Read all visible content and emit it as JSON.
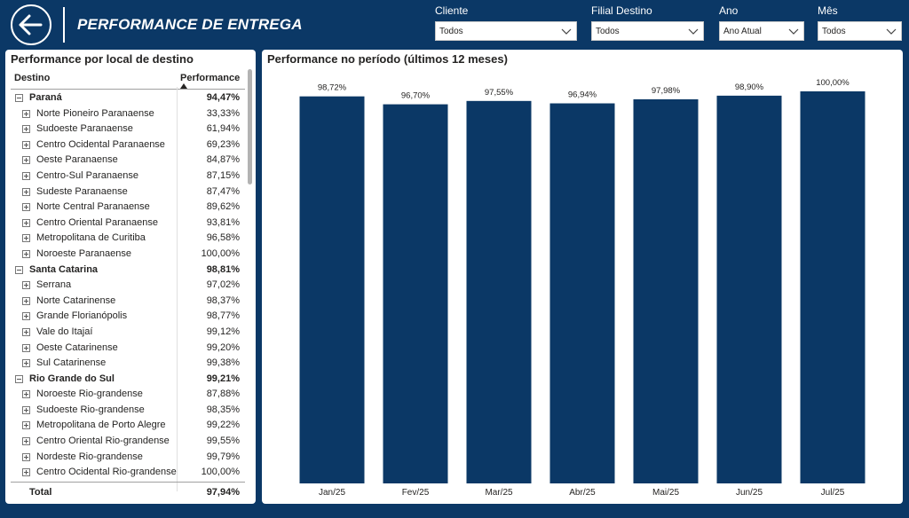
{
  "header": {
    "title": "PERFORMANCE DE ENTREGA",
    "back_icon": "arrow-left-icon"
  },
  "filters": [
    {
      "label": "Cliente",
      "value": "Todos"
    },
    {
      "label": "Filial Destino",
      "value": "Todos"
    },
    {
      "label": "Ano",
      "value": "Ano Atual"
    },
    {
      "label": "Mês",
      "value": "Todos"
    }
  ],
  "table": {
    "title": "Performance por local de destino",
    "col_destino": "Destino",
    "col_performance": "Performance",
    "groups": [
      {
        "name": "Paraná",
        "value": "94,47%",
        "children": [
          {
            "name": "Norte Pioneiro Paranaense",
            "value": "33,33%"
          },
          {
            "name": "Sudoeste Paranaense",
            "value": "61,94%"
          },
          {
            "name": "Centro Ocidental Paranaense",
            "value": "69,23%"
          },
          {
            "name": "Oeste Paranaense",
            "value": "84,87%"
          },
          {
            "name": "Centro-Sul Paranaense",
            "value": "87,15%"
          },
          {
            "name": "Sudeste Paranaense",
            "value": "87,47%"
          },
          {
            "name": "Norte Central Paranaense",
            "value": "89,62%"
          },
          {
            "name": "Centro Oriental Paranaense",
            "value": "93,81%"
          },
          {
            "name": "Metropolitana de Curitiba",
            "value": "96,58%"
          },
          {
            "name": "Noroeste Paranaense",
            "value": "100,00%"
          }
        ]
      },
      {
        "name": "Santa Catarina",
        "value": "98,81%",
        "children": [
          {
            "name": "Serrana",
            "value": "97,02%"
          },
          {
            "name": "Norte Catarinense",
            "value": "98,37%"
          },
          {
            "name": "Grande Florianópolis",
            "value": "98,77%"
          },
          {
            "name": "Vale do Itajaí",
            "value": "99,12%"
          },
          {
            "name": "Oeste Catarinense",
            "value": "99,20%"
          },
          {
            "name": "Sul Catarinense",
            "value": "99,38%"
          }
        ]
      },
      {
        "name": "Rio Grande do Sul",
        "value": "99,21%",
        "children": [
          {
            "name": "Noroeste Rio-grandense",
            "value": "87,88%"
          },
          {
            "name": "Sudoeste Rio-grandense",
            "value": "98,35%"
          },
          {
            "name": "Metropolitana de Porto Alegre",
            "value": "99,22%"
          },
          {
            "name": "Centro Oriental Rio-grandense",
            "value": "99,55%"
          },
          {
            "name": "Nordeste Rio-grandense",
            "value": "99,79%"
          },
          {
            "name": "Centro Ocidental Rio-grandense",
            "value": "100,00%"
          }
        ]
      }
    ],
    "total_label": "Total",
    "total_value": "97,94%"
  },
  "chart_data": {
    "type": "bar",
    "title": "Performance no período (últimos 12 meses)",
    "categories": [
      "Jan/25",
      "Fev/25",
      "Mar/25",
      "Abr/25",
      "Mai/25",
      "Jun/25",
      "Jul/25"
    ],
    "values": [
      98.72,
      96.7,
      97.55,
      96.94,
      97.98,
      98.9,
      100.0
    ],
    "data_labels": [
      "98,72%",
      "96,70%",
      "97,55%",
      "96,94%",
      "97,98%",
      "98,90%",
      "100,00%"
    ],
    "xlabel": "",
    "ylabel": "",
    "ylim": [
      0,
      100
    ],
    "bar_color": "#0b3866"
  },
  "colors": {
    "background": "#0b3866",
    "panel": "#ffffff",
    "bar": "#0b3866"
  }
}
